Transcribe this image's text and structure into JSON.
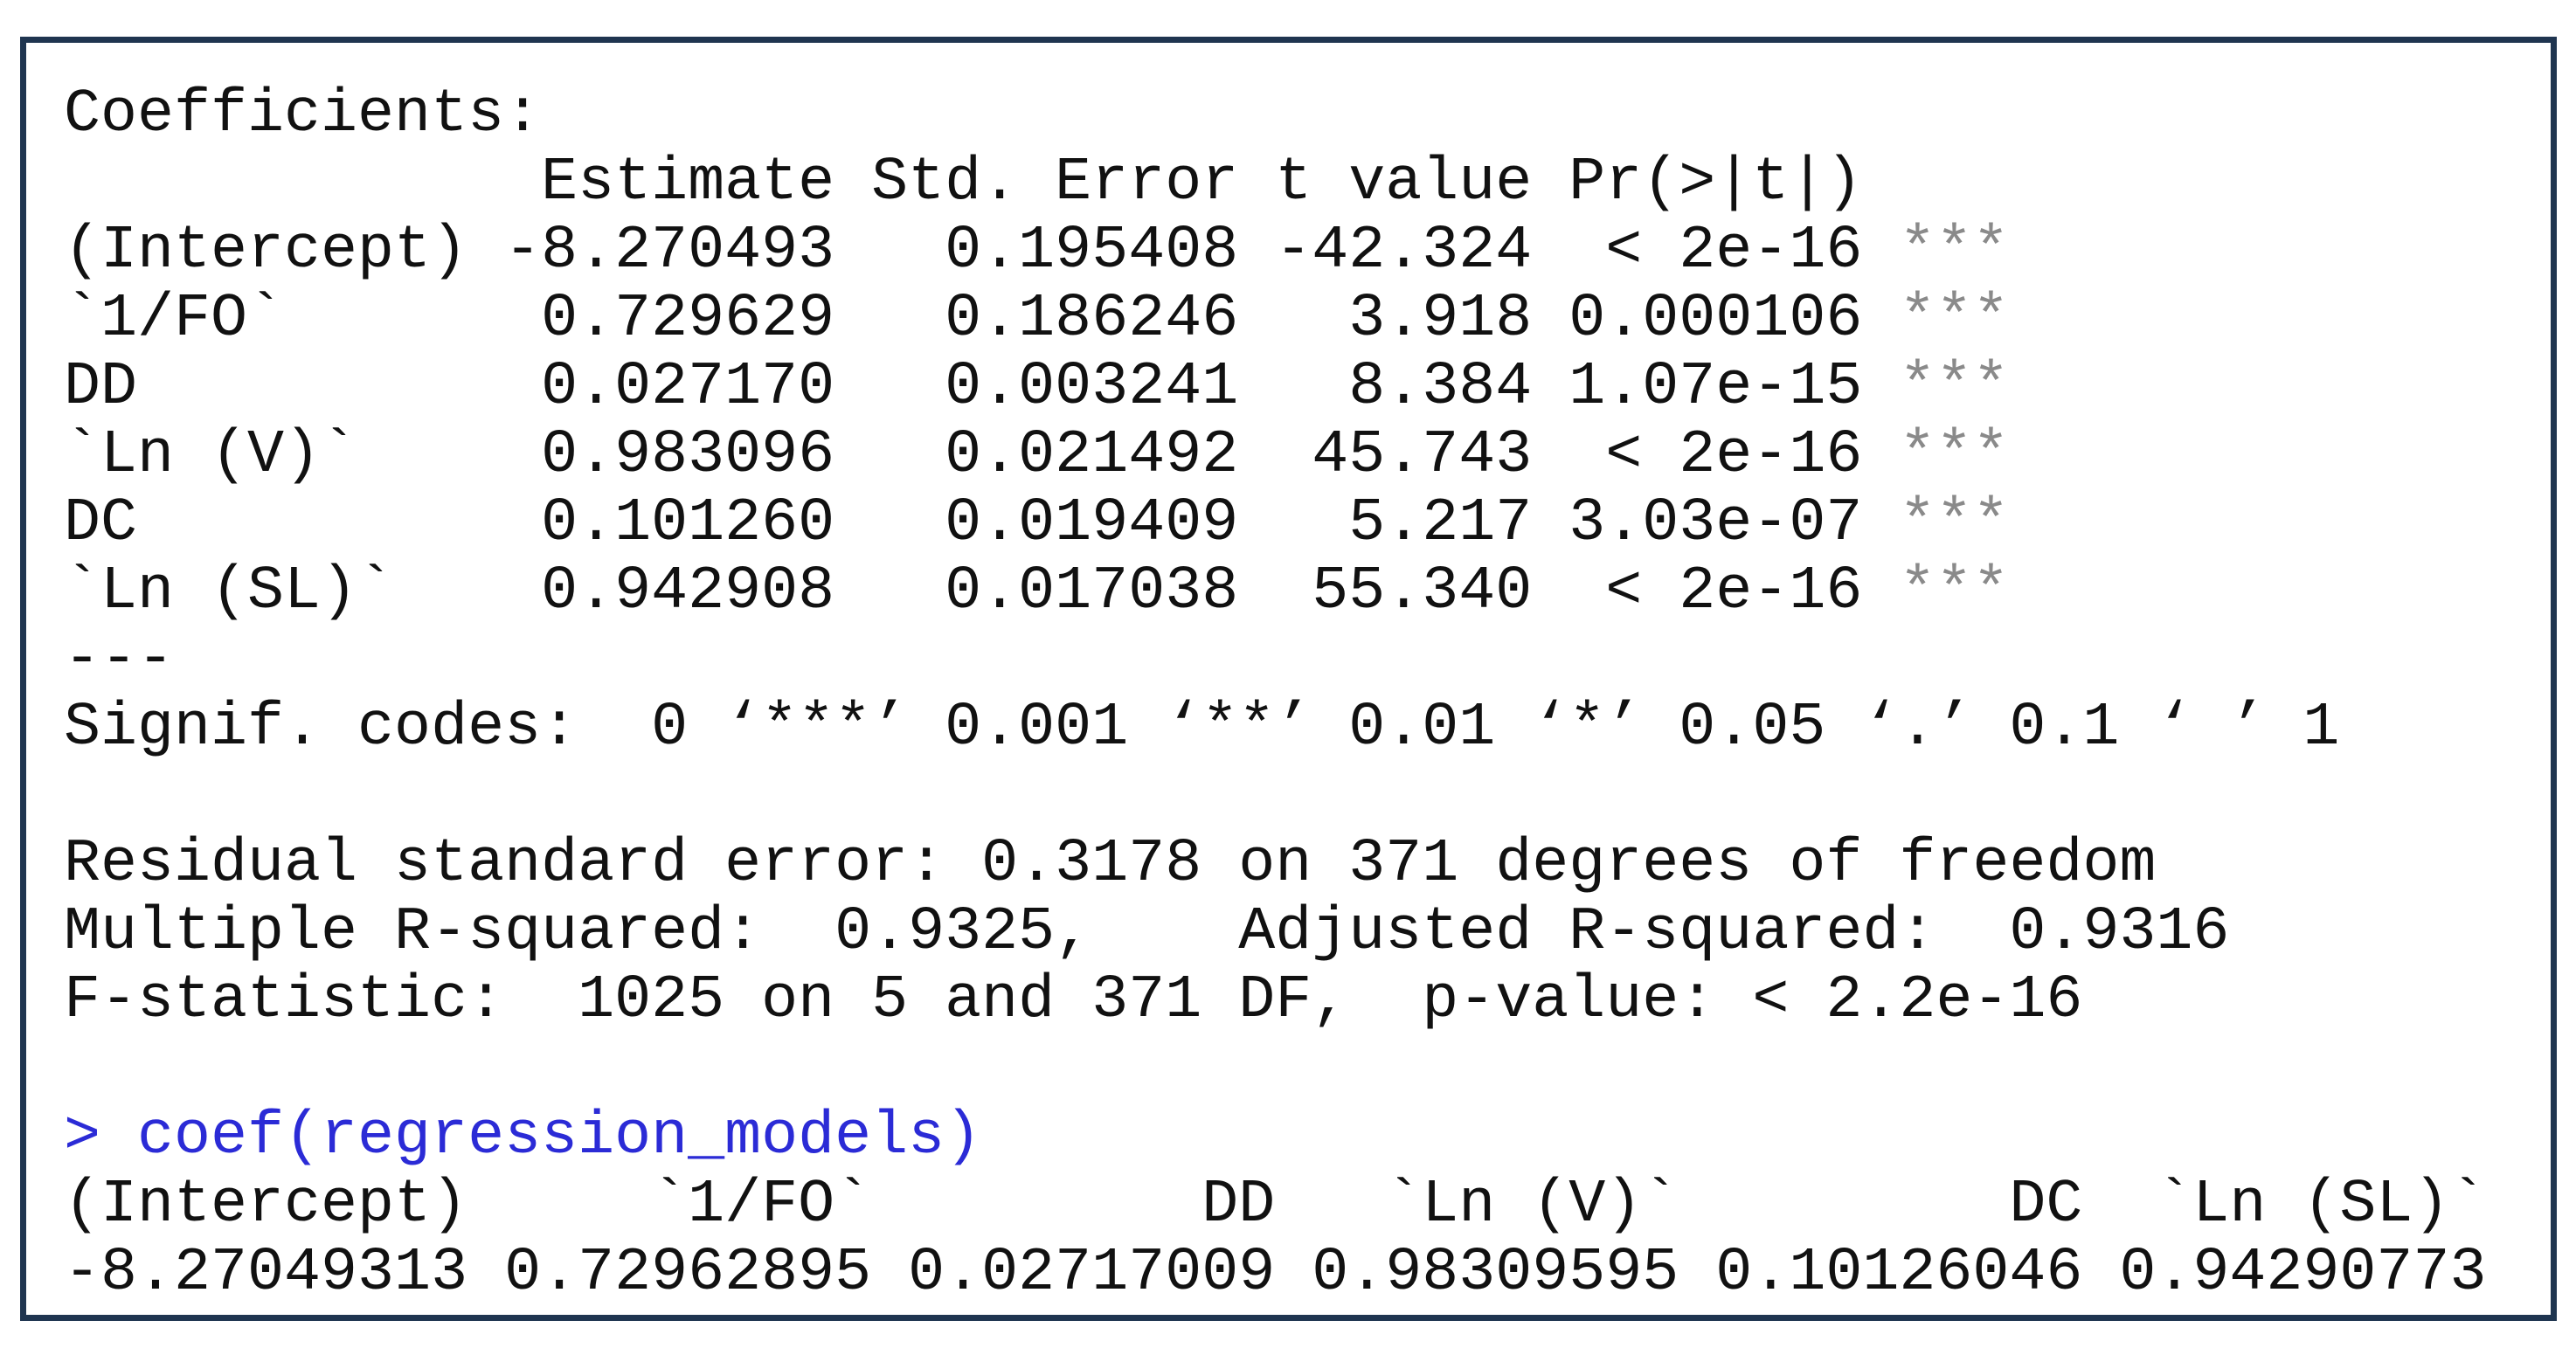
{
  "coefficients": {
    "title": "Coefficients:",
    "header": "             Estimate Std. Error t value Pr(>|t|)",
    "rows": [
      {
        "text": "(Intercept) -8.270493   0.195408 -42.324  < 2e-16",
        "signif": "***"
      },
      {
        "text": "`1/FO`       0.729629   0.186246   3.918 0.000106",
        "signif": "***"
      },
      {
        "text": "DD           0.027170   0.003241   8.384 1.07e-15",
        "signif": "***"
      },
      {
        "text": "`Ln (V)`     0.983096   0.021492  45.743  < 2e-16",
        "signif": "***"
      },
      {
        "text": "DC           0.101260   0.019409   5.217 3.03e-07",
        "signif": "***"
      },
      {
        "text": "`Ln (SL)`    0.942908   0.017038  55.340  < 2e-16",
        "signif": "***"
      }
    ],
    "separator": "---",
    "signif_codes": "Signif. codes:  0 ‘***’ 0.001 ‘**’ 0.01 ‘*’ 0.05 ‘.’ 0.1 ‘ ’ 1"
  },
  "summary": {
    "lines": [
      "Residual standard error: 0.3178 on 371 degrees of freedom",
      "Multiple R-squared:  0.9325,    Adjusted R-squared:  0.9316",
      "F-statistic:  1025 on 5 and 371 DF,  p-value: < 2.2e-16"
    ]
  },
  "command": "> coef(regression_models)",
  "coef_output": {
    "names": "(Intercept)     `1/FO`         DD   `Ln (V)`         DC  `Ln (SL)`",
    "values": "-8.27049313 0.72962895 0.02717009 0.98309595 0.10126046 0.94290773"
  }
}
